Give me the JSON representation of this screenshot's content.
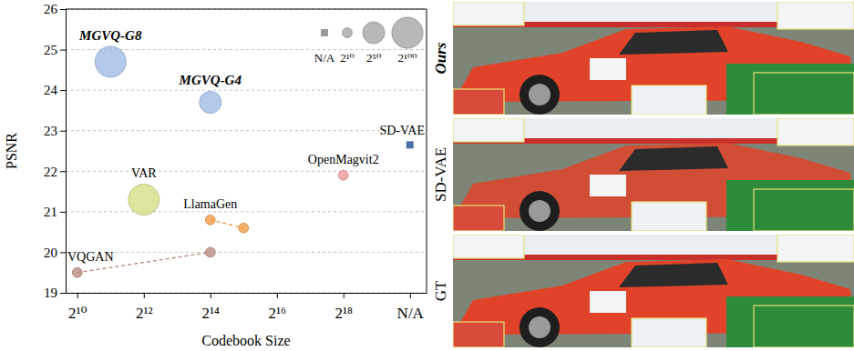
{
  "chart_data": {
    "type": "scatter",
    "x_label": "Codebook Size",
    "y_label": "PSNR",
    "xlim": [
      9.65,
      20.5
    ],
    "ylim": [
      19,
      26
    ],
    "xticks": [
      {
        "value": 10,
        "label": "2¹⁰"
      },
      {
        "value": 12,
        "label": "2¹²"
      },
      {
        "value": 14,
        "label": "2¹⁴"
      },
      {
        "value": 16,
        "label": "2¹⁶"
      },
      {
        "value": 18,
        "label": "2¹⁸"
      },
      {
        "value": 20,
        "label": "N/A"
      }
    ],
    "yticks": [
      19,
      20,
      21,
      22,
      23,
      24,
      25,
      26
    ],
    "grid": true,
    "series": [
      {
        "name": "MGVQ-G8",
        "color": "#9bb8e3",
        "marker": "circle",
        "line_style": "none",
        "x": [
          11
        ],
        "values": [
          24.7
        ],
        "sizes": [
          100
        ]
      },
      {
        "name": "MGVQ-G4",
        "color": "#9bb8e3",
        "marker": "circle",
        "line_style": "none",
        "x": [
          14
        ],
        "values": [
          23.7
        ],
        "sizes": [
          50
        ]
      },
      {
        "name": "VAR",
        "color": "#d4dc7f",
        "marker": "circle",
        "line_style": "none",
        "x": [
          12
        ],
        "values": [
          21.3
        ],
        "sizes": [
          100
        ]
      },
      {
        "name": "OpenMagvit2",
        "color": "#f08f95",
        "marker": "circle",
        "line_style": "none",
        "x": [
          18
        ],
        "values": [
          21.9
        ],
        "sizes": [
          10
        ]
      },
      {
        "name": "LlamaGen",
        "color": "#f0963c",
        "marker": "circle",
        "line_style": "dashed",
        "x": [
          14,
          15
        ],
        "values": [
          20.8,
          20.6
        ],
        "sizes": [
          10,
          10
        ]
      },
      {
        "name": "VQGAN",
        "color": "#b88478",
        "marker": "circle",
        "line_style": "dashed",
        "x": [
          10,
          14
        ],
        "values": [
          19.5,
          20.0
        ],
        "sizes": [
          10,
          10
        ]
      },
      {
        "name": "SD-VAE",
        "color": "#4a6fa5",
        "marker": "square",
        "line_style": "none",
        "x": [
          20
        ],
        "values": [
          22.65
        ],
        "sizes": [
          null
        ]
      }
    ],
    "size_legend": {
      "labels": [
        "N/A",
        "2¹⁰",
        "2⁵⁰",
        "2¹⁰⁰"
      ],
      "sizes": [
        null,
        10,
        50,
        100
      ],
      "color": "#9a9a9a"
    }
  },
  "comparison": {
    "labels": [
      "Ours",
      "SD-VAE",
      "GT"
    ]
  }
}
